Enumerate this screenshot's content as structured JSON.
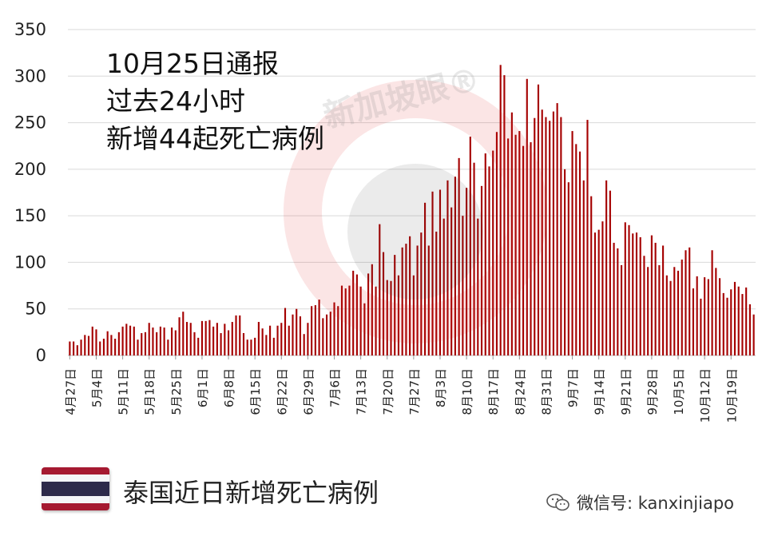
{
  "annotation": {
    "line1": "10月25日通报",
    "line2": "过去24小时",
    "line3": "新增44起死亡病例"
  },
  "caption": "泰国近日新增死亡病例",
  "watermark": {
    "text": "新加坡眼®",
    "credit": "微信号: kanxinjiapo"
  },
  "flag_colors": [
    "#A51931",
    "#F4F5F8",
    "#2D2A4A"
  ],
  "chart_data": {
    "type": "bar",
    "color": "#A50000",
    "ylim": [
      0,
      350
    ],
    "yticks": [
      0,
      50,
      100,
      150,
      200,
      250,
      300,
      350
    ],
    "xtick_labels": [
      "4月27日",
      "5月4日",
      "5月11日",
      "5月18日",
      "5月25日",
      "6月1日",
      "6月8日",
      "6月15日",
      "6月22日",
      "6月29日",
      "7月6日",
      "7月13日",
      "7月20日",
      "7月27日",
      "8月3日",
      "8月10日",
      "8月17日",
      "8月24日",
      "8月31日",
      "9月7日",
      "9月14日",
      "9月21日",
      "9月28日",
      "10月5日",
      "10月12日",
      "10月19日"
    ],
    "grid": true,
    "legend": "none",
    "values": [
      15,
      15,
      11,
      17,
      22,
      21,
      31,
      28,
      15,
      18,
      26,
      22,
      18,
      25,
      31,
      34,
      32,
      31,
      17,
      24,
      25,
      35,
      30,
      25,
      31,
      30,
      17,
      30,
      27,
      41,
      47,
      36,
      35,
      25,
      19,
      37,
      37,
      38,
      31,
      35,
      24,
      34,
      27,
      36,
      43,
      43,
      24,
      17,
      17,
      19,
      36,
      29,
      22,
      32,
      19,
      32,
      35,
      51,
      32,
      44,
      50,
      42,
      23,
      35,
      53,
      54,
      60,
      40,
      44,
      47,
      57,
      53,
      75,
      72,
      75,
      91,
      87,
      74,
      56,
      88,
      98,
      74,
      141,
      111,
      81,
      80,
      108,
      86,
      116,
      120,
      128,
      86,
      118,
      132,
      164,
      118,
      176,
      133,
      178,
      147,
      188,
      159,
      192,
      212,
      150,
      180,
      235,
      207,
      147,
      182,
      217,
      203,
      220,
      240,
      312,
      301,
      233,
      261,
      237,
      241,
      225,
      297,
      229,
      255,
      291,
      264,
      256,
      252,
      262,
      271,
      256,
      200,
      186,
      241,
      227,
      219,
      188,
      253,
      171,
      132,
      135,
      144,
      188,
      177,
      121,
      115,
      97,
      143,
      140,
      131,
      132,
      127,
      107,
      95,
      129,
      121,
      97,
      118,
      86,
      80,
      95,
      91,
      103,
      113,
      116,
      72,
      85,
      61,
      84,
      82,
      113,
      94,
      83,
      67,
      62,
      71,
      79,
      74,
      66,
      73,
      55,
      44
    ]
  }
}
